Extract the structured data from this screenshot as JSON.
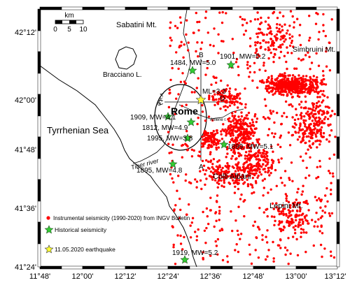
{
  "map": {
    "lat_ticks": [
      "42°12'",
      "42°00'",
      "41°48'",
      "41°36'",
      "41°24'"
    ],
    "lon_ticks": [
      "11°48'",
      "12°00'",
      "12°12'",
      "12°24'",
      "12°36'",
      "12°48'",
      "13°00'",
      "13°12'"
    ],
    "scale_bar": {
      "unit": "km",
      "labels": [
        "0",
        "5",
        "10"
      ]
    },
    "places": {
      "sabatini": "Sabatini Mt.",
      "simbruini": "Simbruini Mt.",
      "bracciano": "Bracciano L.",
      "rome": "Rome",
      "tyrrhenian": "Tyrrhenian Sea",
      "tiber": "Tiber river",
      "colli": "Colli Albani",
      "lepini": "Lepini Mt.",
      "gra": "G.R.A.",
      "aniene": "Aniene r."
    },
    "section_letters": {
      "a": "A",
      "b": "B",
      "c": "C",
      "d": "D"
    },
    "earthquake_label": "ML=3.3",
    "historical": [
      {
        "id": "e1484",
        "label": "1484, MW=5.0"
      },
      {
        "id": "e1901",
        "label": "1901, MW=5.2"
      },
      {
        "id": "e1909",
        "label": "1909, MW=4.1"
      },
      {
        "id": "e1812",
        "label": "1812, MW=4.9"
      },
      {
        "id": "e1995",
        "label": "1995, MW=3.8"
      },
      {
        "id": "e1899",
        "label": "1899, MW=5.1"
      },
      {
        "id": "e1895",
        "label": "1895, MW=4.8"
      },
      {
        "id": "e1919",
        "label": "1919, MW=5.2"
      }
    ],
    "legend": {
      "instrumental": "Instrumental seismicity (1990-2020) from INGV Bulletin",
      "historical": "Historical seismicity",
      "earthquake": "11.05.2020 earthquake"
    },
    "colors": {
      "seismicity": "#ff0000",
      "historical": "#33cc33",
      "earthquake": "#ffff33",
      "frame": "#000000"
    }
  }
}
